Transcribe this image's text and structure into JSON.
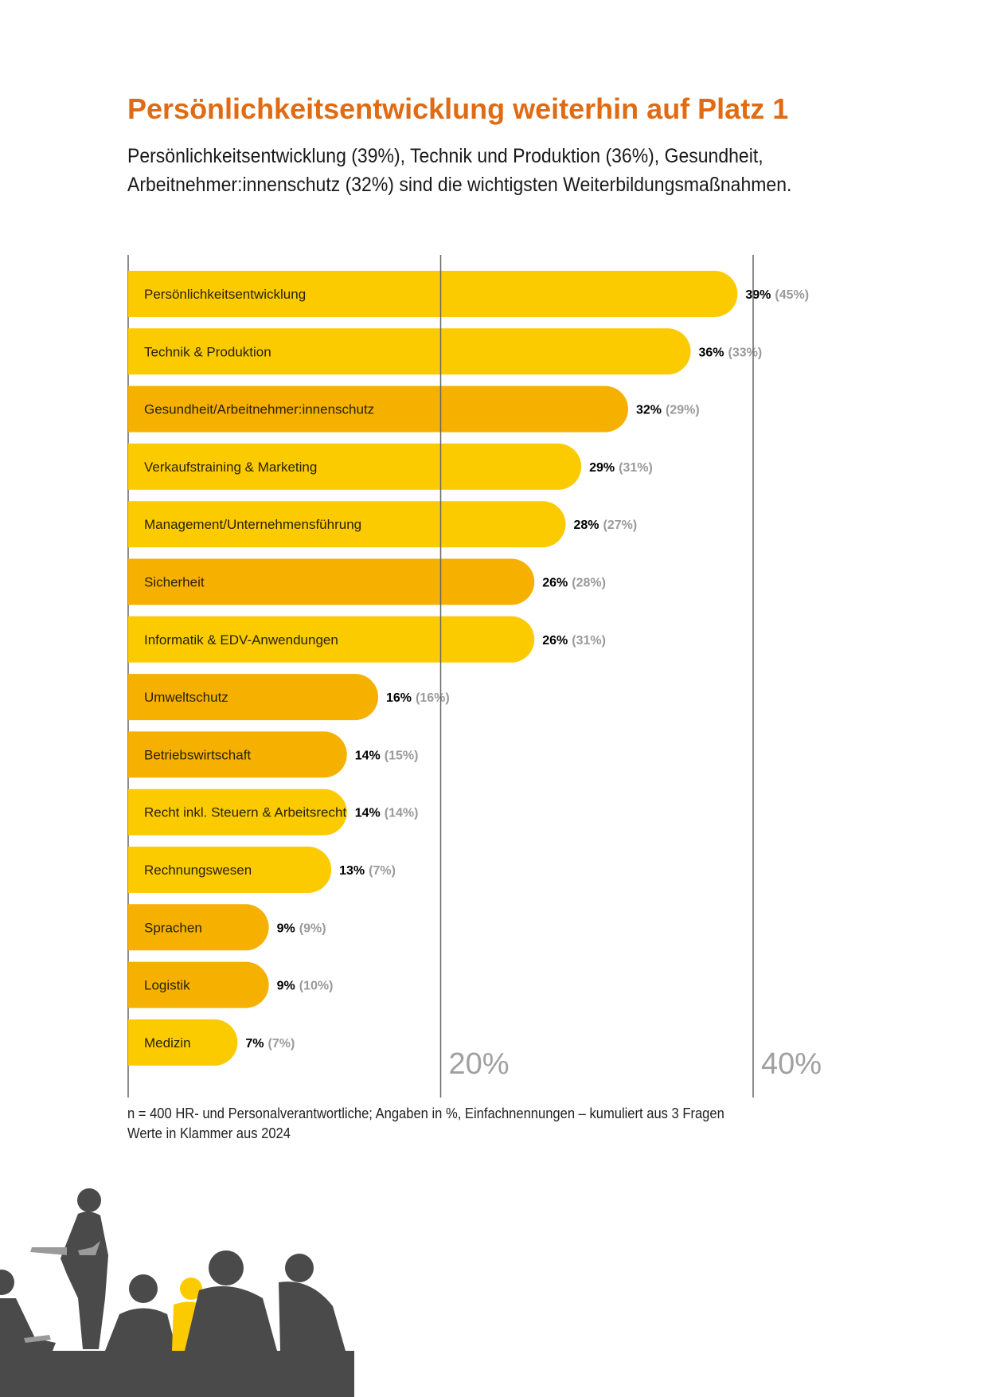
{
  "header": {
    "title": "Persönlichkeitsentwicklung weiterhin auf Platz 1",
    "subtitle": "Persönlichkeitsentwicklung (39%), Technik und Produktion (36%), Gesundheit, Arbeitnehmer:innenschutz (32%) sind die wichtigsten Weiterbildungsmaßnahmen."
  },
  "colors": {
    "title": "#E06B13",
    "bar_light": "#FBCB00",
    "bar_dark": "#F5B000",
    "prev_value": "#9a9a9a",
    "silhouette": "#4a4a4a",
    "silhouette_accent": "#FBCB00"
  },
  "chart_data": {
    "type": "bar",
    "orientation": "horizontal",
    "xlim": [
      0,
      40
    ],
    "ticks": [
      {
        "value": 20,
        "label": "20%"
      },
      {
        "value": 40,
        "label": "40%"
      }
    ],
    "bars": [
      {
        "label": "Persönlichkeitsentwicklung",
        "value": 39,
        "value_label": "39%",
        "previous": 45,
        "previous_label": "(45%)",
        "shade": "light"
      },
      {
        "label": "Technik & Produktion",
        "value": 36,
        "value_label": "36%",
        "previous": 33,
        "previous_label": "(33%)",
        "shade": "light"
      },
      {
        "label": "Gesundheit/Arbeitnehmer:innenschutz",
        "value": 32,
        "value_label": "32%",
        "previous": 29,
        "previous_label": "(29%)",
        "shade": "dark"
      },
      {
        "label": "Verkaufstraining & Marketing",
        "value": 29,
        "value_label": "29%",
        "previous": 31,
        "previous_label": "(31%)",
        "shade": "light"
      },
      {
        "label": "Management/Unternehmensführung",
        "value": 28,
        "value_label": "28%",
        "previous": 27,
        "previous_label": "(27%)",
        "shade": "light"
      },
      {
        "label": "Sicherheit",
        "value": 26,
        "value_label": "26%",
        "previous": 28,
        "previous_label": "(28%)",
        "shade": "dark"
      },
      {
        "label": "Informatik & EDV-Anwendungen",
        "value": 26,
        "value_label": "26%",
        "previous": 31,
        "previous_label": "(31%)",
        "shade": "light"
      },
      {
        "label": "Umweltschutz",
        "value": 16,
        "value_label": "16%",
        "previous": 16,
        "previous_label": "(16%)",
        "shade": "dark"
      },
      {
        "label": "Betriebswirtschaft",
        "value": 14,
        "value_label": "14%",
        "previous": 15,
        "previous_label": "(15%)",
        "shade": "dark"
      },
      {
        "label": "Recht inkl. Steuern & Arbeitsrecht",
        "value": 14,
        "value_label": "14%",
        "previous": 14,
        "previous_label": "(14%)",
        "shade": "light"
      },
      {
        "label": "Rechnungswesen",
        "value": 13,
        "value_label": "13%",
        "previous": 7,
        "previous_label": "(7%)",
        "shade": "light"
      },
      {
        "label": "Sprachen",
        "value": 9,
        "value_label": "9%",
        "previous": 9,
        "previous_label": "(9%)",
        "shade": "dark"
      },
      {
        "label": "Logistik",
        "value": 9,
        "value_label": "9%",
        "previous": 10,
        "previous_label": "(10%)",
        "shade": "dark"
      },
      {
        "label": "Medizin",
        "value": 7,
        "value_label": "7%",
        "previous": 7,
        "previous_label": "(7%)",
        "shade": "light"
      }
    ]
  },
  "footnote": {
    "line1": "n = 400 HR- und Personalverantwortliche; Angaben in %, Einfachnennungen – kumuliert aus 3 Fragen",
    "line2": "Werte in Klammer aus 2024"
  },
  "illustration": {
    "icon": "audience-silhouette-icon"
  }
}
